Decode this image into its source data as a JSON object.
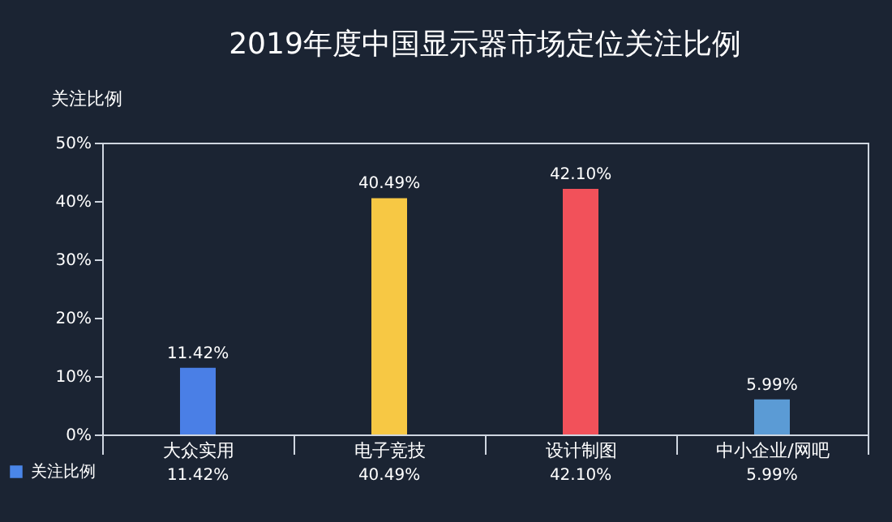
{
  "chart_data": {
    "type": "bar",
    "title": "2019年度中国显示器市场定位关注比例",
    "ylabel": "关注比例",
    "categories": [
      "大众实用",
      "电子竞技",
      "设计制图",
      "中小企业/网吧"
    ],
    "series": [
      {
        "name": "关注比例",
        "color": "#4a86e8",
        "colors": [
          "#4a7fe6",
          "#f7c844",
          "#f2515a",
          "#5b9bd5"
        ],
        "values": [
          11.42,
          40.49,
          42.1,
          5.99
        ],
        "value_labels": [
          "11.42%",
          "40.49%",
          "42.10%",
          "5.99%"
        ]
      }
    ],
    "ylim": [
      0,
      50
    ],
    "yticks": [
      {
        "value": 0,
        "label": "0%"
      },
      {
        "value": 10,
        "label": "10%"
      },
      {
        "value": 20,
        "label": "20%"
      },
      {
        "value": 30,
        "label": "30%"
      },
      {
        "value": 40,
        "label": "40%"
      },
      {
        "value": 50,
        "label": "50%"
      }
    ],
    "grid": false,
    "legend": "bottom left"
  }
}
